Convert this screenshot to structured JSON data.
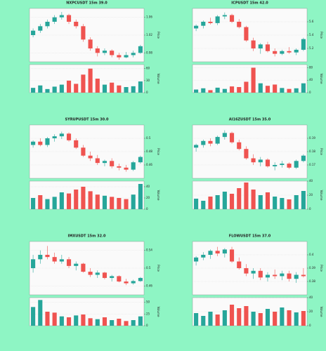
{
  "chart_data": [
    {
      "type": "candlestick",
      "title": "NXPCUSDT 15m 39.0",
      "ylabel": "Price",
      "volume_label": "Volume",
      "up_color": "#26a69a",
      "down_color": "#ef5350",
      "grid": true,
      "ylim": [
        0.96,
        1.08
      ],
      "yticks": [
        0.98,
        1.02,
        1.06
      ],
      "volume_ylim": [
        0,
        70
      ],
      "volume_yticks": [
        0,
        30,
        60
      ],
      "ohlc": [
        [
          1.02,
          1.035,
          1.015,
          1.03
        ],
        [
          1.03,
          1.045,
          1.025,
          1.04
        ],
        [
          1.04,
          1.055,
          1.035,
          1.05
        ],
        [
          1.05,
          1.065,
          1.045,
          1.06
        ],
        [
          1.06,
          1.072,
          1.055,
          1.065
        ],
        [
          1.065,
          1.068,
          1.045,
          1.05
        ],
        [
          1.05,
          1.055,
          1.035,
          1.04
        ],
        [
          1.04,
          1.045,
          1.005,
          1.01
        ],
        [
          1.01,
          1.015,
          0.985,
          0.99
        ],
        [
          0.99,
          0.995,
          0.972,
          0.98
        ],
        [
          0.98,
          0.99,
          0.975,
          0.985
        ],
        [
          0.985,
          0.988,
          0.97,
          0.975
        ],
        [
          0.975,
          0.98,
          0.965,
          0.97
        ],
        [
          0.97,
          0.982,
          0.968,
          0.975
        ],
        [
          0.975,
          0.985,
          0.97,
          0.98
        ],
        [
          0.98,
          0.998,
          0.978,
          0.995
        ]
      ],
      "volume": [
        12,
        18,
        9,
        15,
        20,
        30,
        22,
        45,
        60,
        35,
        20,
        25,
        18,
        14,
        16,
        28
      ]
    },
    {
      "type": "candlestick",
      "title": "ICPUSDT 15m 42.0",
      "ylabel": "Price",
      "volume_label": "Volume",
      "up_color": "#26a69a",
      "down_color": "#ef5350",
      "grid": true,
      "ylim": [
        5.0,
        5.8
      ],
      "yticks": [
        5.2,
        5.4,
        5.6
      ],
      "volume_ylim": [
        0,
        90
      ],
      "volume_yticks": [
        0,
        40,
        80
      ],
      "ohlc": [
        [
          5.5,
          5.56,
          5.46,
          5.54
        ],
        [
          5.54,
          5.62,
          5.5,
          5.6
        ],
        [
          5.6,
          5.66,
          5.56,
          5.58
        ],
        [
          5.58,
          5.7,
          5.55,
          5.68
        ],
        [
          5.68,
          5.74,
          5.64,
          5.7
        ],
        [
          5.7,
          5.72,
          5.58,
          5.6
        ],
        [
          5.6,
          5.64,
          5.5,
          5.52
        ],
        [
          5.52,
          5.54,
          5.3,
          5.32
        ],
        [
          5.32,
          5.36,
          5.16,
          5.2
        ],
        [
          5.2,
          5.28,
          5.12,
          5.26
        ],
        [
          5.26,
          5.3,
          5.14,
          5.16
        ],
        [
          5.16,
          5.2,
          5.08,
          5.12
        ],
        [
          5.12,
          5.18,
          5.1,
          5.16
        ],
        [
          5.16,
          5.22,
          5.12,
          5.14
        ],
        [
          5.14,
          5.2,
          5.1,
          5.18
        ],
        [
          5.18,
          5.36,
          5.16,
          5.34
        ]
      ],
      "volume": [
        10,
        14,
        8,
        16,
        12,
        20,
        18,
        35,
        80,
        30,
        22,
        26,
        15,
        12,
        14,
        30
      ]
    },
    {
      "type": "candlestick",
      "title": "SYRUPUSDT 15m 30.0",
      "ylabel": "Price",
      "volume_label": "Volume",
      "up_color": "#26a69a",
      "down_color": "#ef5350",
      "grid": true,
      "ylim": [
        0.44,
        0.52
      ],
      "yticks": [
        0.46,
        0.48,
        0.5
      ],
      "volume_ylim": [
        0,
        50
      ],
      "volume_yticks": [
        0,
        20,
        40
      ],
      "ohlc": [
        [
          0.49,
          0.497,
          0.486,
          0.495
        ],
        [
          0.495,
          0.5,
          0.488,
          0.49
        ],
        [
          0.49,
          0.502,
          0.487,
          0.5
        ],
        [
          0.5,
          0.506,
          0.495,
          0.503
        ],
        [
          0.503,
          0.51,
          0.499,
          0.507
        ],
        [
          0.507,
          0.509,
          0.495,
          0.497
        ],
        [
          0.497,
          0.5,
          0.484,
          0.486
        ],
        [
          0.486,
          0.49,
          0.472,
          0.474
        ],
        [
          0.474,
          0.48,
          0.466,
          0.47
        ],
        [
          0.47,
          0.475,
          0.46,
          0.463
        ],
        [
          0.463,
          0.468,
          0.458,
          0.466
        ],
        [
          0.466,
          0.47,
          0.455,
          0.458
        ],
        [
          0.458,
          0.462,
          0.452,
          0.456
        ],
        [
          0.456,
          0.46,
          0.45,
          0.453
        ],
        [
          0.453,
          0.466,
          0.451,
          0.464
        ],
        [
          0.464,
          0.474,
          0.462,
          0.472
        ]
      ],
      "volume": [
        20,
        25,
        18,
        22,
        30,
        28,
        35,
        40,
        32,
        26,
        24,
        22,
        20,
        18,
        26,
        45
      ]
    },
    {
      "type": "candlestick",
      "title": "AI16ZUSDT 15m 35.0",
      "ylabel": "Price",
      "volume_label": "Volume",
      "up_color": "#26a69a",
      "down_color": "#ef5350",
      "grid": true,
      "ylim": [
        0.16,
        0.2
      ],
      "yticks": [
        0.17,
        0.18,
        0.19
      ],
      "volume_ylim": [
        0,
        40
      ],
      "volume_yticks": [
        0,
        20,
        40
      ],
      "ohlc": [
        [
          0.183,
          0.186,
          0.18,
          0.185
        ],
        [
          0.185,
          0.189,
          0.183,
          0.188
        ],
        [
          0.188,
          0.19,
          0.184,
          0.186
        ],
        [
          0.186,
          0.192,
          0.185,
          0.191
        ],
        [
          0.191,
          0.196,
          0.189,
          0.194
        ],
        [
          0.194,
          0.195,
          0.186,
          0.187
        ],
        [
          0.187,
          0.189,
          0.181,
          0.182
        ],
        [
          0.182,
          0.184,
          0.174,
          0.175
        ],
        [
          0.175,
          0.178,
          0.17,
          0.172
        ],
        [
          0.172,
          0.176,
          0.169,
          0.174
        ],
        [
          0.174,
          0.175,
          0.168,
          0.169
        ],
        [
          0.169,
          0.172,
          0.166,
          0.17
        ],
        [
          0.17,
          0.173,
          0.168,
          0.171
        ],
        [
          0.171,
          0.172,
          0.167,
          0.168
        ],
        [
          0.168,
          0.174,
          0.167,
          0.173
        ],
        [
          0.173,
          0.178,
          0.172,
          0.177
        ]
      ],
      "volume": [
        15,
        12,
        18,
        20,
        25,
        22,
        30,
        38,
        28,
        20,
        24,
        18,
        16,
        14,
        20,
        26
      ]
    },
    {
      "type": "candlestick",
      "title": "IMXUSDT 15m 32.0",
      "ylabel": "Price",
      "volume_label": "Volume",
      "up_color": "#26a69a",
      "down_color": "#ef5350",
      "grid": true,
      "ylim": [
        0.44,
        0.56
      ],
      "yticks": [
        0.46,
        0.5,
        0.54
      ],
      "volume_ylim": [
        0,
        60
      ],
      "volume_yticks": [
        0,
        25,
        50
      ],
      "ohlc": [
        [
          0.5,
          0.53,
          0.49,
          0.52
        ],
        [
          0.52,
          0.54,
          0.51,
          0.53
        ],
        [
          0.53,
          0.55,
          0.52,
          0.525
        ],
        [
          0.525,
          0.535,
          0.51,
          0.515
        ],
        [
          0.515,
          0.53,
          0.51,
          0.52
        ],
        [
          0.52,
          0.525,
          0.5,
          0.505
        ],
        [
          0.505,
          0.515,
          0.495,
          0.51
        ],
        [
          0.51,
          0.512,
          0.49,
          0.492
        ],
        [
          0.492,
          0.5,
          0.48,
          0.485
        ],
        [
          0.485,
          0.495,
          0.478,
          0.49
        ],
        [
          0.49,
          0.492,
          0.475,
          0.478
        ],
        [
          0.478,
          0.485,
          0.47,
          0.482
        ],
        [
          0.482,
          0.484,
          0.468,
          0.47
        ],
        [
          0.47,
          0.476,
          0.462,
          0.466
        ],
        [
          0.466,
          0.474,
          0.463,
          0.471
        ],
        [
          0.471,
          0.48,
          0.469,
          0.478
        ]
      ],
      "volume": [
        40,
        55,
        30,
        28,
        20,
        18,
        22,
        24,
        16,
        14,
        18,
        12,
        15,
        10,
        12,
        20
      ]
    },
    {
      "type": "candlestick",
      "title": "FLOWUSDT 15m 37.0",
      "ylabel": "Price",
      "volume_label": "Volume",
      "up_color": "#26a69a",
      "down_color": "#ef5350",
      "grid": true,
      "ylim": [
        0.37,
        0.41
      ],
      "yticks": [
        0.38,
        0.39,
        0.4
      ],
      "volume_ylim": [
        0,
        40
      ],
      "volume_yticks": [
        0,
        20,
        40
      ],
      "ohlc": [
        [
          0.395,
          0.399,
          0.392,
          0.398
        ],
        [
          0.398,
          0.402,
          0.396,
          0.4
        ],
        [
          0.4,
          0.404,
          0.397,
          0.403
        ],
        [
          0.403,
          0.406,
          0.399,
          0.401
        ],
        [
          0.401,
          0.405,
          0.398,
          0.404
        ],
        [
          0.404,
          0.406,
          0.394,
          0.395
        ],
        [
          0.395,
          0.398,
          0.389,
          0.39
        ],
        [
          0.39,
          0.393,
          0.384,
          0.386
        ],
        [
          0.386,
          0.39,
          0.382,
          0.388
        ],
        [
          0.388,
          0.39,
          0.381,
          0.383
        ],
        [
          0.383,
          0.387,
          0.38,
          0.385
        ],
        [
          0.385,
          0.389,
          0.382,
          0.384
        ],
        [
          0.384,
          0.388,
          0.381,
          0.386
        ],
        [
          0.386,
          0.388,
          0.38,
          0.382
        ],
        [
          0.382,
          0.387,
          0.379,
          0.385
        ],
        [
          0.385,
          0.39,
          0.383,
          0.384
        ]
      ],
      "volume": [
        18,
        14,
        20,
        16,
        22,
        30,
        25,
        28,
        20,
        18,
        24,
        20,
        26,
        22,
        19,
        21
      ]
    }
  ]
}
